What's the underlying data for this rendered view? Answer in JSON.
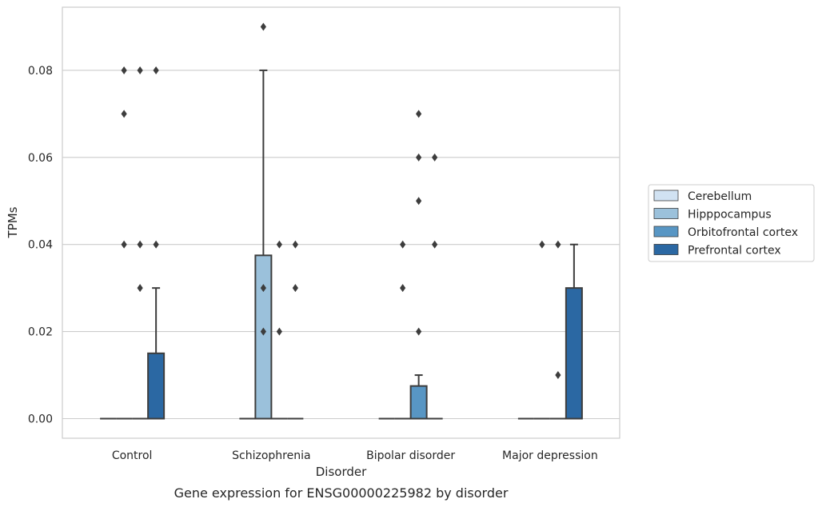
{
  "chart_data": {
    "type": "box",
    "caption": "Gene expression for ENSG00000225982 by disorder",
    "xlabel": "Disorder",
    "ylabel": "TPMs",
    "ylim": [
      -0.0045,
      0.0945
    ],
    "yticks": [
      "0.00",
      "0.02",
      "0.04",
      "0.06",
      "0.08"
    ],
    "ytick_values": [
      0,
      0.02,
      0.04,
      0.06,
      0.08
    ],
    "grid": true,
    "legend_position": "right",
    "categories": [
      "Control",
      "Schizophrenia",
      "Bipolar disorder",
      "Major depression"
    ],
    "series": [
      {
        "name": "Cerebellum",
        "color": "#d1e2f2",
        "boxes": [
          {
            "q1": 0,
            "median": 0,
            "q3": 0,
            "whisker_low": 0,
            "whisker_high": 0,
            "outliers": []
          },
          {
            "q1": 0,
            "median": 0,
            "q3": 0,
            "whisker_low": 0,
            "whisker_high": 0,
            "outliers": []
          },
          {
            "q1": 0,
            "median": 0,
            "q3": 0,
            "whisker_low": 0,
            "whisker_high": 0,
            "outliers": []
          },
          {
            "q1": 0,
            "median": 0,
            "q3": 0,
            "whisker_low": 0,
            "whisker_high": 0,
            "outliers": []
          }
        ]
      },
      {
        "name": "Hipppocampus",
        "color": "#9bc1db",
        "boxes": [
          {
            "q1": 0,
            "median": 0,
            "q3": 0,
            "whisker_low": 0,
            "whisker_high": 0,
            "outliers": [
              0.08,
              0.07,
              0.04
            ]
          },
          {
            "q1": 0,
            "median": 0,
            "q3": 0.0375,
            "whisker_low": 0,
            "whisker_high": 0.08,
            "outliers": [
              0.09,
              0.03,
              0.02
            ]
          },
          {
            "q1": 0,
            "median": 0,
            "q3": 0,
            "whisker_low": 0,
            "whisker_high": 0,
            "outliers": [
              0.04,
              0.03
            ]
          },
          {
            "q1": 0,
            "median": 0,
            "q3": 0,
            "whisker_low": 0,
            "whisker_high": 0,
            "outliers": [
              0.04
            ]
          }
        ]
      },
      {
        "name": "Orbitofrontal cortex",
        "color": "#5896c4",
        "boxes": [
          {
            "q1": 0,
            "median": 0,
            "q3": 0,
            "whisker_low": 0,
            "whisker_high": 0,
            "outliers": [
              0.08,
              0.04,
              0.03
            ]
          },
          {
            "q1": 0,
            "median": 0,
            "q3": 0,
            "whisker_low": 0,
            "whisker_high": 0,
            "outliers": [
              0.04,
              0.02
            ]
          },
          {
            "q1": 0,
            "median": 0,
            "q3": 0.0075,
            "whisker_low": 0,
            "whisker_high": 0.01,
            "outliers": [
              0.06,
              0.07,
              0.05,
              0.02
            ]
          },
          {
            "q1": 0,
            "median": 0,
            "q3": 0,
            "whisker_low": 0,
            "whisker_high": 0,
            "outliers": [
              0.04,
              0.01
            ]
          }
        ]
      },
      {
        "name": "Prefrontal cortex",
        "color": "#2b68a3",
        "boxes": [
          {
            "q1": 0,
            "median": 0,
            "q3": 0.015,
            "whisker_low": 0,
            "whisker_high": 0.03,
            "outliers": [
              0.08,
              0.04
            ]
          },
          {
            "q1": 0,
            "median": 0,
            "q3": 0,
            "whisker_low": 0,
            "whisker_high": 0,
            "outliers": [
              0.04,
              0.03
            ]
          },
          {
            "q1": 0,
            "median": 0,
            "q3": 0,
            "whisker_low": 0,
            "whisker_high": 0,
            "outliers": [
              0.06,
              0.04
            ]
          },
          {
            "q1": 0,
            "median": 0,
            "q3": 0.03,
            "whisker_low": 0,
            "whisker_high": 0.04,
            "outliers": []
          }
        ]
      }
    ]
  }
}
